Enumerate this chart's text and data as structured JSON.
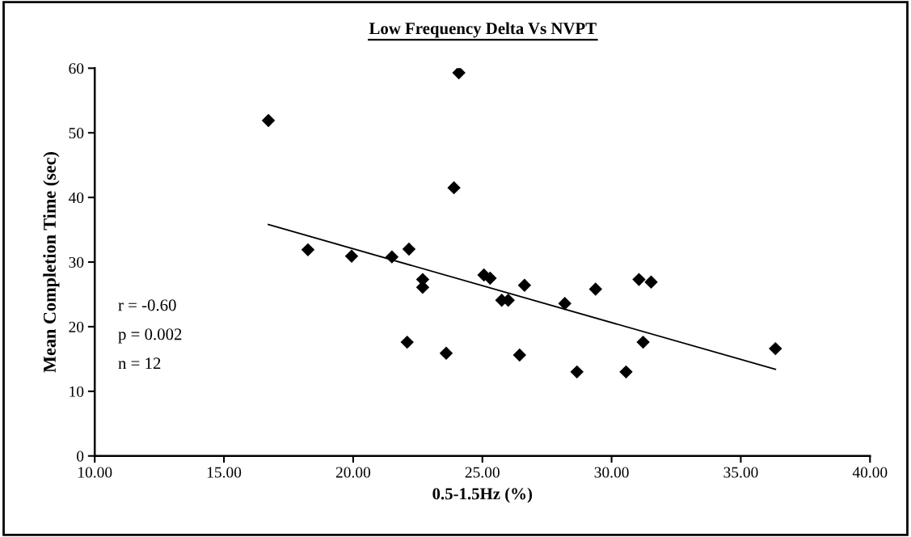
{
  "chart_data": {
    "type": "scatter",
    "title": "Low Frequency Delta Vs NVPT",
    "xlabel": "0.5-1.5Hz (%)",
    "ylabel": "Mean Completion Time (sec)",
    "series": [
      {
        "color": "#000000",
        "marker": "diamond",
        "x": [
          16.72,
          24.09,
          23.9,
          18.25,
          19.94,
          21.5,
          22.16,
          22.69,
          22.69,
          25.06,
          25.3,
          22.09,
          23.6,
          26.63,
          25.75,
          26.0,
          28.19,
          29.38,
          31.06,
          31.53,
          26.44,
          28.66,
          30.56,
          31.22,
          36.34
        ],
        "values": [
          51.9,
          59.3,
          41.5,
          31.9,
          30.9,
          30.8,
          32.0,
          27.3,
          26.1,
          28.0,
          27.5,
          17.6,
          15.9,
          26.4,
          24.1,
          24.1,
          23.6,
          25.8,
          27.3,
          26.9,
          15.6,
          13.0,
          13.0,
          17.6,
          16.6
        ]
      },
      {
        "type": "line",
        "color": "#000000",
        "marker": "none",
        "line_style": "solid",
        "x": [
          16.72,
          36.34
        ],
        "values": [
          35.8,
          13.4
        ]
      }
    ],
    "xlim": [
      10,
      40
    ],
    "xticks": [
      {
        "value": 10,
        "label": "10.00"
      },
      {
        "value": 15,
        "label": "15.00"
      },
      {
        "value": 20,
        "label": "20.00"
      },
      {
        "value": 25,
        "label": "25.00"
      },
      {
        "value": 30,
        "label": "30.00"
      },
      {
        "value": 35,
        "label": "35.00"
      },
      {
        "value": 40,
        "label": "40.00"
      }
    ],
    "ylim": [
      0,
      60
    ],
    "yticks": [
      0,
      10,
      20,
      30,
      40,
      50,
      60
    ],
    "grid": false,
    "legend": false,
    "annotations": [
      "r = -0.60",
      "p = 0.002",
      "n = 12"
    ]
  }
}
